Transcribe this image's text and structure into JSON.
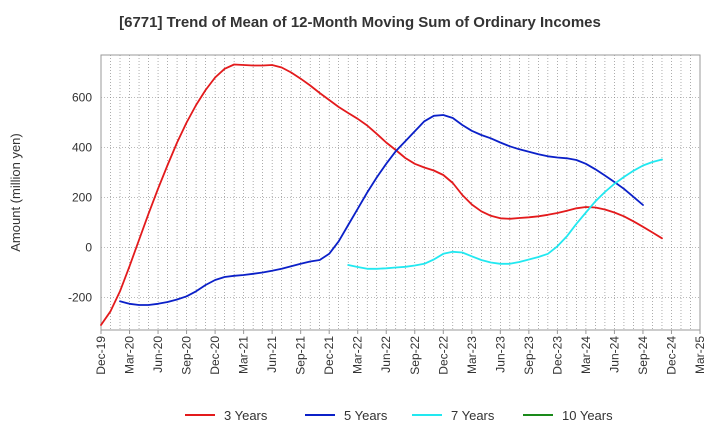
{
  "title": "[6771]  Trend of Mean of 12-Month Moving Sum of Ordinary Incomes",
  "chart_data": {
    "type": "line",
    "title": "[6771]  Trend of Mean of 12-Month Moving Sum of Ordinary Incomes",
    "xlabel": "",
    "ylabel": "Amount (million yen)",
    "x_ticks": [
      "Dec-19",
      "Mar-20",
      "Jun-20",
      "Sep-20",
      "Dec-20",
      "Mar-21",
      "Jun-21",
      "Sep-21",
      "Dec-21",
      "Mar-22",
      "Jun-22",
      "Sep-22",
      "Dec-22",
      "Mar-23",
      "Jun-23",
      "Sep-23",
      "Dec-23",
      "Mar-24",
      "Jun-24",
      "Sep-24",
      "Dec-24",
      "Mar-25"
    ],
    "y_ticks": [
      -200,
      0,
      200,
      400,
      600
    ],
    "ylim": [
      -330,
      770
    ],
    "x_range_months": [
      0,
      63
    ],
    "grid": true,
    "legend_position": "bottom",
    "series": [
      {
        "name": "3 Years",
        "color": "#e31a1c",
        "points": [
          [
            0,
            -310
          ],
          [
            1,
            -255
          ],
          [
            2,
            -175
          ],
          [
            3,
            -75
          ],
          [
            4,
            30
          ],
          [
            5,
            135
          ],
          [
            6,
            235
          ],
          [
            7,
            330
          ],
          [
            8,
            420
          ],
          [
            9,
            500
          ],
          [
            10,
            570
          ],
          [
            11,
            630
          ],
          [
            12,
            680
          ],
          [
            13,
            715
          ],
          [
            14,
            732
          ],
          [
            15,
            730
          ],
          [
            16,
            728
          ],
          [
            17,
            728
          ],
          [
            18,
            730
          ],
          [
            19,
            720
          ],
          [
            20,
            700
          ],
          [
            21,
            675
          ],
          [
            22,
            648
          ],
          [
            23,
            618
          ],
          [
            24,
            590
          ],
          [
            25,
            562
          ],
          [
            26,
            538
          ],
          [
            27,
            515
          ],
          [
            28,
            488
          ],
          [
            29,
            455
          ],
          [
            30,
            420
          ],
          [
            31,
            390
          ],
          [
            32,
            358
          ],
          [
            33,
            335
          ],
          [
            34,
            320
          ],
          [
            35,
            308
          ],
          [
            36,
            290
          ],
          [
            37,
            258
          ],
          [
            38,
            210
          ],
          [
            39,
            172
          ],
          [
            40,
            145
          ],
          [
            41,
            127
          ],
          [
            42,
            117
          ],
          [
            43,
            115
          ],
          [
            44,
            118
          ],
          [
            45,
            121
          ],
          [
            46,
            125
          ],
          [
            47,
            131
          ],
          [
            48,
            138
          ],
          [
            49,
            147
          ],
          [
            50,
            157
          ],
          [
            51,
            162
          ],
          [
            52,
            160
          ],
          [
            53,
            152
          ],
          [
            54,
            140
          ],
          [
            55,
            125
          ],
          [
            56,
            105
          ],
          [
            57,
            83
          ],
          [
            58,
            60
          ],
          [
            59,
            37
          ]
        ]
      },
      {
        "name": "5 Years",
        "color": "#0b20c8",
        "points": [
          [
            2,
            -215
          ],
          [
            3,
            -225
          ],
          [
            4,
            -230
          ],
          [
            5,
            -230
          ],
          [
            6,
            -225
          ],
          [
            7,
            -218
          ],
          [
            8,
            -208
          ],
          [
            9,
            -195
          ],
          [
            10,
            -175
          ],
          [
            11,
            -150
          ],
          [
            12,
            -130
          ],
          [
            13,
            -118
          ],
          [
            14,
            -113
          ],
          [
            15,
            -110
          ],
          [
            16,
            -105
          ],
          [
            17,
            -100
          ],
          [
            18,
            -93
          ],
          [
            19,
            -85
          ],
          [
            20,
            -75
          ],
          [
            21,
            -65
          ],
          [
            22,
            -56
          ],
          [
            23,
            -50
          ],
          [
            24,
            -25
          ],
          [
            25,
            25
          ],
          [
            26,
            90
          ],
          [
            27,
            155
          ],
          [
            28,
            220
          ],
          [
            29,
            280
          ],
          [
            30,
            335
          ],
          [
            31,
            385
          ],
          [
            32,
            425
          ],
          [
            33,
            465
          ],
          [
            34,
            505
          ],
          [
            35,
            527
          ],
          [
            36,
            530
          ],
          [
            37,
            518
          ],
          [
            38,
            490
          ],
          [
            39,
            467
          ],
          [
            40,
            450
          ],
          [
            41,
            437
          ],
          [
            42,
            420
          ],
          [
            43,
            405
          ],
          [
            44,
            393
          ],
          [
            45,
            383
          ],
          [
            46,
            373
          ],
          [
            47,
            365
          ],
          [
            48,
            360
          ],
          [
            49,
            357
          ],
          [
            50,
            350
          ],
          [
            51,
            335
          ],
          [
            52,
            313
          ],
          [
            53,
            288
          ],
          [
            54,
            262
          ],
          [
            55,
            235
          ],
          [
            56,
            203
          ],
          [
            57,
            170
          ]
        ]
      },
      {
        "name": "7 Years",
        "color": "#22e8f0",
        "points": [
          [
            26,
            -70
          ],
          [
            27,
            -78
          ],
          [
            28,
            -85
          ],
          [
            29,
            -85
          ],
          [
            30,
            -83
          ],
          [
            31,
            -80
          ],
          [
            32,
            -77
          ],
          [
            33,
            -72
          ],
          [
            34,
            -65
          ],
          [
            35,
            -48
          ],
          [
            36,
            -25
          ],
          [
            37,
            -17
          ],
          [
            38,
            -20
          ],
          [
            39,
            -35
          ],
          [
            40,
            -50
          ],
          [
            41,
            -60
          ],
          [
            42,
            -65
          ],
          [
            43,
            -65
          ],
          [
            44,
            -58
          ],
          [
            45,
            -48
          ],
          [
            46,
            -38
          ],
          [
            47,
            -25
          ],
          [
            48,
            5
          ],
          [
            49,
            45
          ],
          [
            50,
            95
          ],
          [
            51,
            140
          ],
          [
            52,
            185
          ],
          [
            53,
            222
          ],
          [
            54,
            255
          ],
          [
            55,
            282
          ],
          [
            56,
            307
          ],
          [
            57,
            328
          ],
          [
            58,
            342
          ],
          [
            59,
            352
          ]
        ]
      },
      {
        "name": "10 Years",
        "color": "#1a8a1a",
        "points": []
      }
    ]
  }
}
